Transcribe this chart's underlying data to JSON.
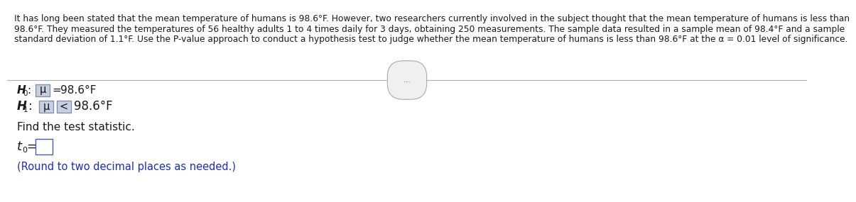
{
  "paragraph_line1": "It has long been stated that the mean temperature of humans is 98.6°F. However, two researchers currently involved in the subject thought that the mean temperature of humans is less than",
  "paragraph_line2": "98.6°F. They measured the temperatures of 56 healthy adults 1 to 4 times daily for 3 days, obtaining 250 measurements. The sample data resulted in a sample mean of 98.4°F and a sample",
  "paragraph_line3": "standard deviation of 1.1°F. Use the P-value approach to conduct a hypothesis test to judge whether the mean temperature of humans is less than 98.6°F at the α = 0.01 level of significance.",
  "h0_text": "H",
  "h0_sub": "0",
  "h0_colon": ":",
  "h0_mu": "μ",
  "h0_box": "=",
  "h0_val": "98.6°F",
  "h1_text": "H",
  "h1_sub": "1",
  "h1_colon": ":",
  "h1_mu": "μ",
  "h1_box": "<",
  "h1_val": "98.6°F",
  "find_text": "Find the test statistic.",
  "t0_label": "t",
  "t0_sub": "0",
  "t0_eq": "=",
  "round_text": "(Round to two decimal places as needed.)",
  "bg_color": "#ffffff",
  "text_color": "#1a1a1a",
  "blue_color": "#1a2ccc",
  "box_fill": "#c8d0e0",
  "box_edge": "#8090b0",
  "answer_box_fill": "#ffffff",
  "answer_box_edge": "#4060c0",
  "divider_color": "#b0b0b0",
  "dots_color": "#666666",
  "dots_bg": "#f0f0f0",
  "dots_edge": "#aaaaaa"
}
